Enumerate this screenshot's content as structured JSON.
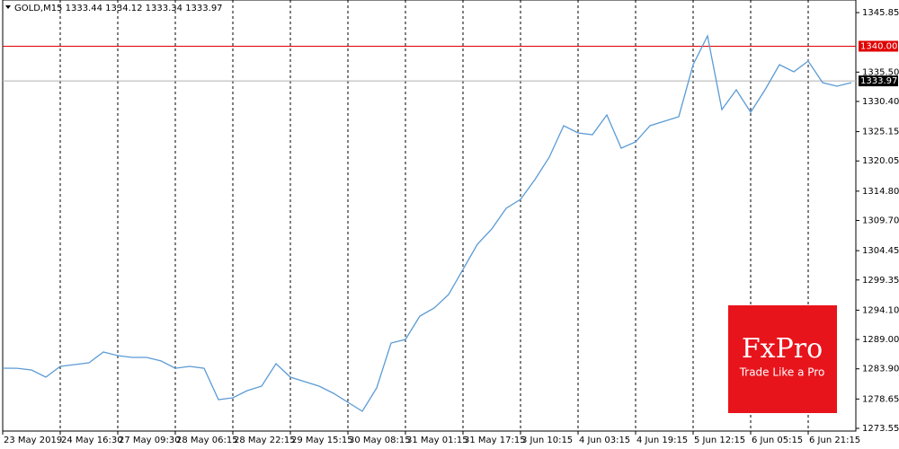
{
  "chart_data": {
    "type": "line",
    "title": "GOLD,M15  1333.44 1334.12 1333.34 1333.97",
    "xlim": [
      0,
      59
    ],
    "xticks": [
      {
        "value": 0,
        "label": "23 May 2019"
      },
      {
        "value": 4,
        "label": "24 May 16:30"
      },
      {
        "value": 8,
        "label": "27 May 09:30"
      },
      {
        "value": 12,
        "label": "28 May 06:15"
      },
      {
        "value": 16,
        "label": "28 May 22:15"
      },
      {
        "value": 20,
        "label": "29 May 15:15"
      },
      {
        "value": 24,
        "label": "30 May 08:15"
      },
      {
        "value": 28,
        "label": "31 May 01:15"
      },
      {
        "value": 32,
        "label": "31 May 17:15"
      },
      {
        "value": 36,
        "label": "3 Jun 10:15"
      },
      {
        "value": 40,
        "label": "4 Jun 03:15"
      },
      {
        "value": 44,
        "label": "4 Jun 19:15"
      },
      {
        "value": 48,
        "label": "5 Jun 12:15"
      },
      {
        "value": 52,
        "label": "6 Jun 05:15"
      },
      {
        "value": 56,
        "label": "6 Jun 21:15"
      }
    ],
    "ylim": [
      1273.08,
      1348.04
    ],
    "yticks": [
      1345.85,
      {
        "value": 1335.5,
        "label": "1335.50"
      },
      {
        "value": 1330.4,
        "label": "1330.40"
      },
      1325.15,
      1320.05,
      {
        "value": 1314.8,
        "label": "1314.80"
      },
      {
        "value": 1309.7,
        "label": "1309.70"
      },
      1304.45,
      1299.35,
      {
        "value": 1294.1,
        "label": "1294.10"
      },
      {
        "value": 1289,
        "label": "1289.00"
      },
      {
        "value": 1283.9,
        "label": "1283.90"
      },
      1278.65,
      1273.55
    ],
    "grid_x": true,
    "series": [
      {
        "name": "GOLD",
        "color": "#5b9bd5",
        "values": [
          1284.01,
          1284.0,
          1283.7,
          1282.45,
          1284.33,
          1284.64,
          1284.95,
          1286.83,
          1286.2,
          1285.89,
          1285.89,
          1285.27,
          1284.0,
          1284.33,
          1284.0,
          1278.55,
          1278.86,
          1280.11,
          1280.89,
          1284.8,
          1282.45,
          1281.67,
          1280.89,
          1279.64,
          1278.08,
          1276.52,
          1280.58,
          1288.39,
          1289.01,
          1293.07,
          1294.48,
          1296.82,
          1301.19,
          1305.56,
          1308.22,
          1311.81,
          1313.37,
          1316.81,
          1320.71,
          1326.18,
          1324.93,
          1324.62,
          1328.05,
          1322.27,
          1323.37,
          1326.18,
          1326.96,
          1327.74,
          1336.8,
          1341.79,
          1328.99,
          1332.42,
          1328.52,
          1332.42,
          1336.8,
          1335.55,
          1337.42,
          1333.67,
          1333.05,
          1333.67
        ]
      }
    ],
    "levels": [
      {
        "value": 1340,
        "label": "1340.00",
        "color": "#e00000"
      },
      {
        "value": 1333.97,
        "label": "1333.97",
        "color": "#b0b0b0"
      }
    ]
  },
  "logo": {
    "name": "FxPro",
    "tagline": "Trade Like a Pro"
  }
}
